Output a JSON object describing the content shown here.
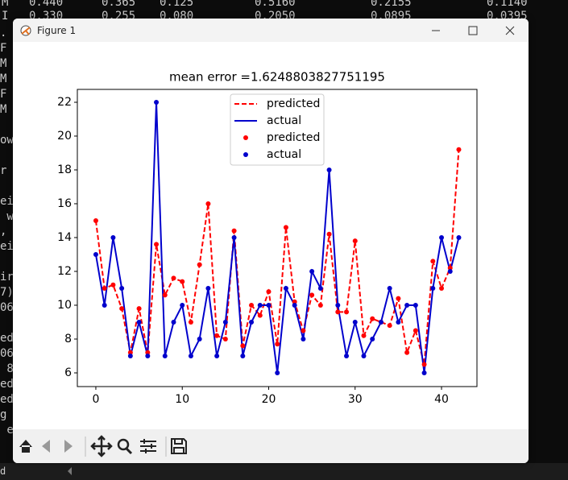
{
  "terminal": {
    "top_rows": [
      [
        "M",
        "0.440",
        "0.365",
        "0.125",
        "0.5160",
        "0.2155",
        "0.1140"
      ],
      [
        "I",
        "0.330",
        "0.255",
        "0.080",
        "0.2050",
        "0.0895",
        "0.0395"
      ]
    ],
    "left_column": [
      ".",
      "F",
      "M",
      "M",
      "F",
      "M",
      "ow",
      "r",
      "ei",
      " w",
      ", w",
      "ei",
      "ir",
      "7)",
      "06",
      "ed",
      "06",
      " 8",
      "ed",
      "ed",
      "g",
      " e"
    ],
    "status": "d"
  },
  "window": {
    "title": "Figure 1"
  },
  "chart_data": {
    "type": "line",
    "title": "mean error =1.6248803827751195",
    "x": [
      0,
      1,
      2,
      3,
      4,
      5,
      6,
      7,
      8,
      9,
      10,
      11,
      12,
      13,
      14,
      15,
      16,
      17,
      18,
      19,
      20,
      21,
      22,
      23,
      24,
      25,
      26,
      27,
      28,
      29,
      30,
      31,
      32,
      33,
      34,
      35,
      36,
      37,
      38,
      39,
      40,
      41,
      42
    ],
    "series": [
      {
        "name": "predicted",
        "color": "#ff0000",
        "style": "line",
        "dashed": true,
        "values": [
          15,
          11,
          11.2,
          9.8,
          7.2,
          9.8,
          7.2,
          13.6,
          10.6,
          11.6,
          11.4,
          9,
          12.4,
          16,
          8.2,
          8,
          14.4,
          7.6,
          10,
          9.4,
          10.8,
          7.7,
          14.6,
          10.2,
          8.5,
          10.6,
          10,
          14.2,
          9.6,
          9.6,
          13.8,
          8.2,
          9.2,
          9,
          8.8,
          10.4,
          7.2,
          8.5,
          6.5,
          12.6,
          11,
          12.2,
          19.2
        ]
      },
      {
        "name": "actual",
        "color": "#0000cc",
        "style": "line",
        "dashed": false,
        "values": [
          13,
          10,
          14,
          11,
          7,
          9,
          7,
          22,
          7,
          9,
          10,
          7,
          8,
          11,
          7,
          9,
          14,
          7,
          9,
          10,
          10,
          6,
          11,
          10,
          8,
          12,
          11,
          18,
          10,
          7,
          9,
          7,
          8,
          9,
          11,
          9,
          10,
          10,
          6,
          11,
          14,
          12,
          14
        ]
      },
      {
        "name": "predicted",
        "color": "#ff0000",
        "style": "scatter",
        "values": [
          15,
          11,
          11.2,
          9.8,
          7.2,
          9.8,
          7.2,
          13.6,
          10.6,
          11.6,
          11.4,
          9,
          12.4,
          16,
          8.2,
          8,
          14.4,
          7.6,
          10,
          9.4,
          10.8,
          7.7,
          14.6,
          10.2,
          8.5,
          10.6,
          10,
          14.2,
          9.6,
          9.6,
          13.8,
          8.2,
          9.2,
          9,
          8.8,
          10.4,
          7.2,
          8.5,
          6.5,
          12.6,
          11,
          12.2,
          19.2
        ]
      },
      {
        "name": "actual",
        "color": "#0000cc",
        "style": "scatter",
        "values": [
          13,
          10,
          14,
          11,
          7,
          9,
          7,
          22,
          7,
          9,
          10,
          7,
          8,
          11,
          7,
          9,
          14,
          7,
          9,
          10,
          10,
          6,
          11,
          10,
          8,
          12,
          11,
          18,
          10,
          7,
          9,
          7,
          8,
          9,
          11,
          9,
          10,
          10,
          6,
          11,
          14,
          12,
          14
        ]
      }
    ],
    "xlim": [
      -2.14,
      44.1
    ],
    "xticks": [
      0,
      10,
      20,
      30,
      40
    ],
    "ylim": [
      5.19,
      22.76
    ],
    "yticks": [
      6,
      8,
      10,
      12,
      14,
      16,
      18,
      20,
      22
    ],
    "legend": "upper center",
    "grid": false
  }
}
